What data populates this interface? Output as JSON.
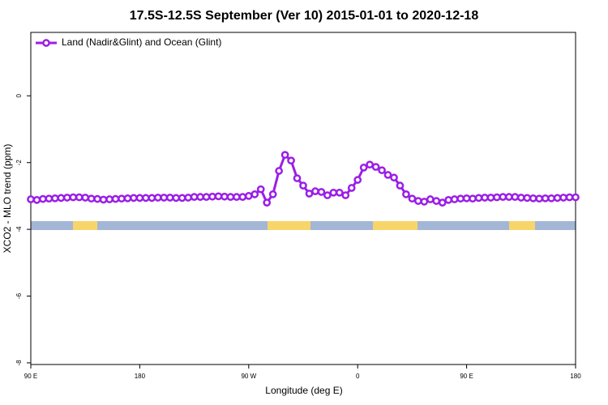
{
  "chart_data": {
    "type": "line",
    "title": "17.5S-12.5S September (Ver 10)   2015-01-01 to 2020-12-18",
    "x_label": "Longitude (deg E)",
    "y_label": "XCO2 - MLO trend (ppm)",
    "x": [
      90,
      95,
      100,
      105,
      110,
      115,
      120,
      125,
      130,
      135,
      140,
      145,
      150,
      155,
      160,
      165,
      170,
      175,
      180,
      185,
      190,
      195,
      200,
      205,
      210,
      215,
      220,
      225,
      230,
      235,
      240,
      245,
      250,
      255,
      260,
      265,
      270,
      275,
      280,
      285,
      290,
      295,
      300,
      305,
      310,
      315,
      320,
      325,
      330,
      335,
      340,
      345,
      350,
      355,
      360,
      365,
      370,
      375,
      380,
      385,
      390,
      395,
      400,
      405,
      410,
      415,
      420,
      425,
      430,
      435,
      440,
      445,
      450,
      455,
      460,
      465,
      470,
      475,
      480,
      485,
      490,
      495,
      500,
      505,
      510,
      515,
      520,
      525,
      530,
      535,
      540
    ],
    "series": [
      {
        "name": "Land (Nadir&Glint) and Ocean (Glint)",
        "color": "#9b1ee6",
        "values": [
          -3.1,
          -3.12,
          -3.09,
          -3.08,
          -3.07,
          -3.06,
          -3.05,
          -3.04,
          -3.04,
          -3.05,
          -3.08,
          -3.09,
          -3.11,
          -3.1,
          -3.09,
          -3.08,
          -3.07,
          -3.06,
          -3.06,
          -3.06,
          -3.06,
          -3.05,
          -3.05,
          -3.05,
          -3.06,
          -3.06,
          -3.05,
          -3.03,
          -3.03,
          -3.03,
          -3.02,
          -3.01,
          -3.02,
          -3.03,
          -3.03,
          -3.03,
          -3.0,
          -2.95,
          -2.8,
          -3.2,
          -2.95,
          -2.25,
          -1.77,
          -1.94,
          -2.47,
          -2.69,
          -2.93,
          -2.86,
          -2.88,
          -2.98,
          -2.9,
          -2.9,
          -2.98,
          -2.76,
          -2.52,
          -2.15,
          -2.06,
          -2.13,
          -2.23,
          -2.37,
          -2.45,
          -2.69,
          -2.95,
          -3.08,
          -3.15,
          -3.17,
          -3.1,
          -3.15,
          -3.2,
          -3.12,
          -3.1,
          -3.08,
          -3.07,
          -3.08,
          -3.06,
          -3.05,
          -3.05,
          -3.04,
          -3.03,
          -3.03,
          -3.03,
          -3.05,
          -3.06,
          -3.07,
          -3.08,
          -3.07,
          -3.07,
          -3.06,
          -3.05,
          -3.04,
          -3.04
        ]
      }
    ],
    "xlim": [
      90,
      540
    ],
    "xticks": [
      {
        "value": 90,
        "label": "90 E"
      },
      {
        "value": 180,
        "label": "180"
      },
      {
        "value": 270,
        "label": "90 W"
      },
      {
        "value": 360,
        "label": "0"
      },
      {
        "value": 450,
        "label": "90 E"
      },
      {
        "value": 540,
        "label": "180"
      }
    ],
    "ylim": [
      -8.05,
      1.9
    ],
    "yticks": [
      0,
      -2,
      -4,
      -6,
      -8
    ],
    "legend": "top-left"
  }
}
